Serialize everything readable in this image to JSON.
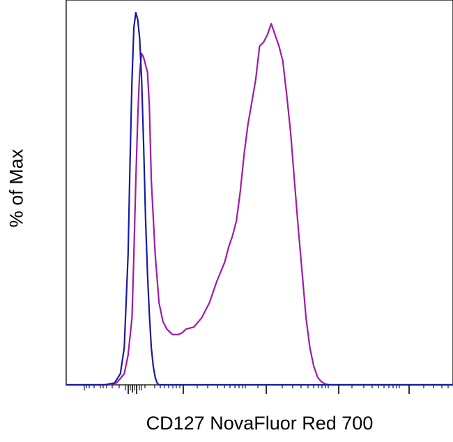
{
  "chart_data": {
    "type": "line",
    "xlabel": "CD127 NovaFluor Red 700",
    "ylabel": "% of Max",
    "x_scale": "biexponential",
    "x_tick_labels": [],
    "y_tick_labels": [],
    "grid": false,
    "legend": "none",
    "ylim": [
      0,
      100
    ],
    "series": [
      {
        "color": "#1a1aa0",
        "points": [
          [
            0.0,
            0
          ],
          [
            0.1,
            0
          ],
          [
            0.125,
            0.5
          ],
          [
            0.14,
            3
          ],
          [
            0.15,
            10
          ],
          [
            0.16,
            35
          ],
          [
            0.165,
            60
          ],
          [
            0.17,
            82
          ],
          [
            0.175,
            96
          ],
          [
            0.18,
            100
          ],
          [
            0.185,
            98
          ],
          [
            0.19,
            93
          ],
          [
            0.195,
            82
          ],
          [
            0.2,
            65
          ],
          [
            0.205,
            45
          ],
          [
            0.21,
            30
          ],
          [
            0.215,
            19
          ],
          [
            0.22,
            10
          ],
          [
            0.225,
            5
          ],
          [
            0.23,
            2
          ],
          [
            0.235,
            0.5
          ],
          [
            0.24,
            0
          ],
          [
            1.0,
            0
          ]
        ]
      },
      {
        "color": "#a01aa8",
        "points": [
          [
            0.0,
            0
          ],
          [
            0.11,
            0
          ],
          [
            0.13,
            0.5
          ],
          [
            0.15,
            3
          ],
          [
            0.16,
            8
          ],
          [
            0.17,
            18
          ],
          [
            0.175,
            35
          ],
          [
            0.18,
            55
          ],
          [
            0.185,
            72
          ],
          [
            0.19,
            84
          ],
          [
            0.195,
            89
          ],
          [
            0.2,
            88
          ],
          [
            0.21,
            84
          ],
          [
            0.215,
            75
          ],
          [
            0.22,
            55
          ],
          [
            0.23,
            35
          ],
          [
            0.24,
            22
          ],
          [
            0.25,
            17
          ],
          [
            0.26,
            15
          ],
          [
            0.275,
            13.5
          ],
          [
            0.29,
            13.5
          ],
          [
            0.3,
            14
          ],
          [
            0.31,
            15
          ],
          [
            0.33,
            15.5
          ],
          [
            0.35,
            18
          ],
          [
            0.37,
            22
          ],
          [
            0.39,
            28
          ],
          [
            0.41,
            33
          ],
          [
            0.42,
            37
          ],
          [
            0.43,
            40
          ],
          [
            0.44,
            44
          ],
          [
            0.45,
            52
          ],
          [
            0.46,
            62
          ],
          [
            0.47,
            70
          ],
          [
            0.48,
            76
          ],
          [
            0.49,
            82
          ],
          [
            0.5,
            91
          ],
          [
            0.51,
            92
          ],
          [
            0.52,
            94
          ],
          [
            0.53,
            97
          ],
          [
            0.54,
            94
          ],
          [
            0.55,
            91
          ],
          [
            0.56,
            87
          ],
          [
            0.57,
            78
          ],
          [
            0.58,
            68
          ],
          [
            0.59,
            55
          ],
          [
            0.6,
            42
          ],
          [
            0.61,
            30
          ],
          [
            0.62,
            18
          ],
          [
            0.63,
            10
          ],
          [
            0.64,
            5
          ],
          [
            0.65,
            2
          ],
          [
            0.66,
            0.8
          ],
          [
            0.67,
            0.2
          ],
          [
            0.68,
            0
          ],
          [
            1.0,
            0
          ]
        ]
      }
    ]
  }
}
